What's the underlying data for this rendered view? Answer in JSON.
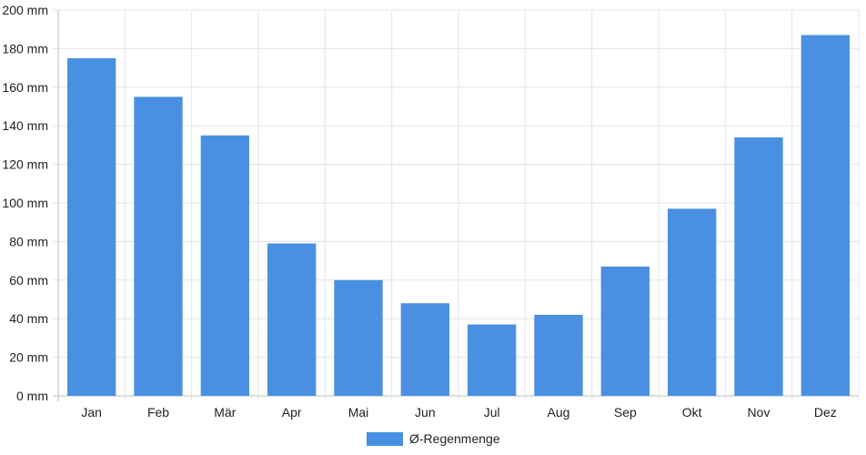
{
  "chart_data": {
    "type": "bar",
    "categories": [
      "Jan",
      "Feb",
      "Mär",
      "Apr",
      "Mai",
      "Jun",
      "Jul",
      "Aug",
      "Sep",
      "Okt",
      "Nov",
      "Dez"
    ],
    "series": [
      {
        "name": "Ø-Regenmenge",
        "values": [
          175,
          155,
          135,
          79,
          60,
          48,
          37,
          42,
          67,
          97,
          134,
          187
        ],
        "color": "#4a90e2"
      }
    ],
    "title": "",
    "xlabel": "",
    "ylabel": "",
    "ylim": [
      0,
      200
    ],
    "y_ticks": [
      "0 mm",
      "20 mm",
      "40 mm",
      "60 mm",
      "80 mm",
      "100 mm",
      "120 mm",
      "140 mm",
      "160 mm",
      "180 mm",
      "200 mm"
    ],
    "grid": true,
    "legend_position": "bottom-center"
  }
}
